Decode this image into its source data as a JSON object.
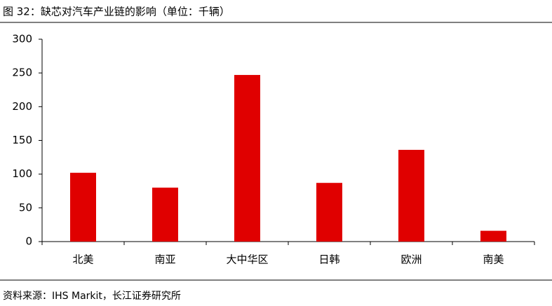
{
  "chart_data": {
    "type": "bar",
    "title": "图 32：缺芯对汽车产业链的影响（单位：千辆）",
    "source": "资料来源：IHS Markit，长江证券研究所",
    "categories": [
      "北美",
      "南亚",
      "大中华区",
      "日韩",
      "欧洲",
      "南美"
    ],
    "values": [
      102,
      80,
      247,
      87,
      136,
      16
    ],
    "color": "#e00000",
    "ylim": [
      0,
      300
    ],
    "yticks": [
      0,
      50,
      100,
      150,
      200,
      250,
      300
    ]
  }
}
